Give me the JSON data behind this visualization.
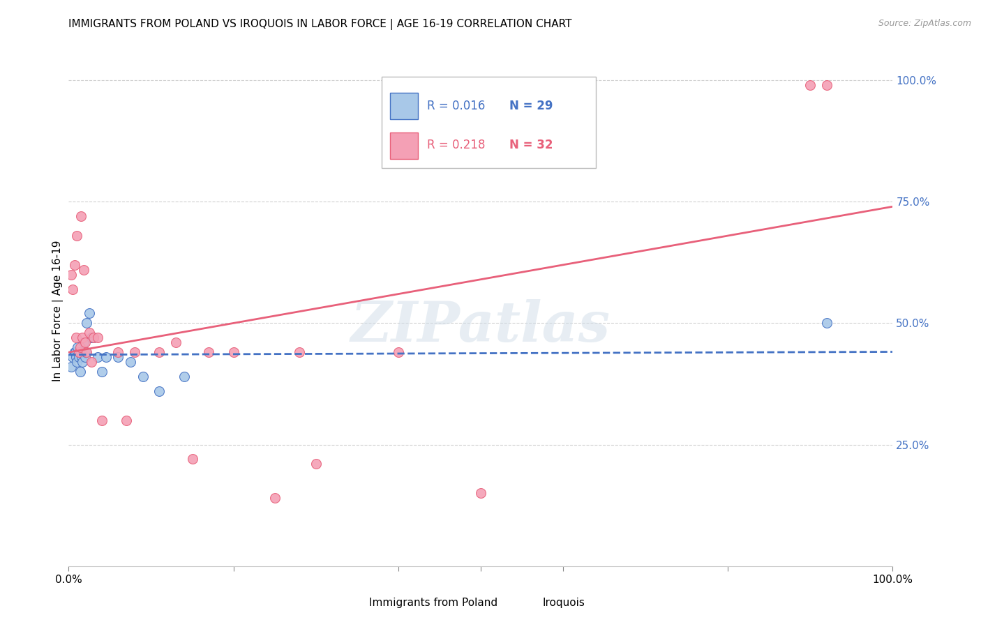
{
  "title": "IMMIGRANTS FROM POLAND VS IROQUOIS IN LABOR FORCE | AGE 16-19 CORRELATION CHART",
  "source": "Source: ZipAtlas.com",
  "ylabel": "In Labor Force | Age 16-19",
  "xlim": [
    0.0,
    1.0
  ],
  "ylim": [
    0.0,
    1.05
  ],
  "y_ticks_right": [
    0.25,
    0.5,
    0.75,
    1.0
  ],
  "y_tick_labels_right": [
    "25.0%",
    "50.0%",
    "75.0%",
    "100.0%"
  ],
  "legend_label1": "Immigrants from Poland",
  "legend_label2": "Iroquois",
  "R1": "0.016",
  "N1": "29",
  "R2": "0.218",
  "N2": "32",
  "color_blue": "#a8c8e8",
  "color_pink": "#f4a0b5",
  "color_blue_line": "#4472c4",
  "color_pink_line": "#e8607a",
  "watermark_text": "ZIPatlas",
  "poland_x": [
    0.003,
    0.005,
    0.007,
    0.008,
    0.009,
    0.01,
    0.011,
    0.012,
    0.013,
    0.014,
    0.015,
    0.016,
    0.017,
    0.018,
    0.02,
    0.021,
    0.022,
    0.025,
    0.028,
    0.03,
    0.035,
    0.04,
    0.045,
    0.06,
    0.075,
    0.09,
    0.11,
    0.14,
    0.92
  ],
  "poland_y": [
    0.41,
    0.43,
    0.44,
    0.44,
    0.43,
    0.42,
    0.45,
    0.43,
    0.44,
    0.4,
    0.44,
    0.43,
    0.42,
    0.46,
    0.43,
    0.44,
    0.5,
    0.52,
    0.47,
    0.47,
    0.43,
    0.4,
    0.43,
    0.43,
    0.42,
    0.39,
    0.36,
    0.39,
    0.5
  ],
  "iroquois_x": [
    0.003,
    0.005,
    0.007,
    0.009,
    0.01,
    0.012,
    0.014,
    0.015,
    0.017,
    0.018,
    0.02,
    0.022,
    0.025,
    0.028,
    0.03,
    0.035,
    0.04,
    0.06,
    0.07,
    0.08,
    0.11,
    0.13,
    0.15,
    0.17,
    0.2,
    0.25,
    0.28,
    0.3,
    0.4,
    0.5,
    0.9,
    0.92
  ],
  "iroquois_y": [
    0.6,
    0.57,
    0.62,
    0.47,
    0.68,
    0.44,
    0.45,
    0.72,
    0.47,
    0.61,
    0.46,
    0.44,
    0.48,
    0.42,
    0.47,
    0.47,
    0.3,
    0.44,
    0.3,
    0.44,
    0.44,
    0.46,
    0.22,
    0.44,
    0.44,
    0.14,
    0.44,
    0.21,
    0.44,
    0.15,
    0.99,
    0.99
  ],
  "poland_line_x": [
    0.0,
    1.0
  ],
  "poland_line_y": [
    0.435,
    0.441
  ],
  "iroquois_line_x": [
    0.0,
    1.0
  ],
  "iroquois_line_y": [
    0.44,
    0.74
  ],
  "background_color": "#ffffff",
  "grid_color": "#d0d0d0"
}
